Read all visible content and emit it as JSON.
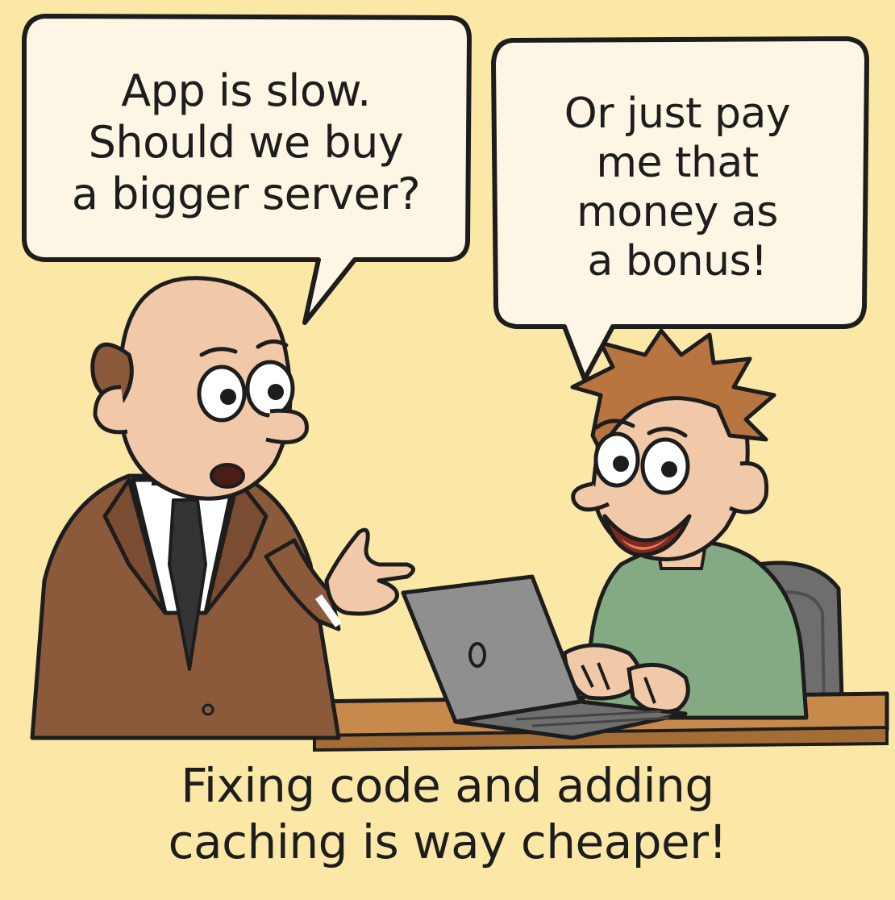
{
  "comic": {
    "bubble_left": "App is slow.\nShould we buy\na bigger server?",
    "bubble_right": "Or just pay\nme that\nmoney as\na bonus!",
    "caption": "Fixing code and adding\ncaching is way cheaper!"
  },
  "colors": {
    "background": "#fbe7a6",
    "outline": "#1d1d1d",
    "bubble_fill": "#fdf6e4",
    "suit": "#8a5a3b",
    "skin": "#f2c9a8",
    "sweater": "#84aa83",
    "hair": "#b9753f",
    "laptop": "#8f8f8f",
    "desk": "#c88a4a"
  },
  "icons": [
    "speech-bubble-left",
    "speech-bubble-right",
    "boss-figure",
    "developer-figure",
    "laptop-icon",
    "desk",
    "chair"
  ]
}
